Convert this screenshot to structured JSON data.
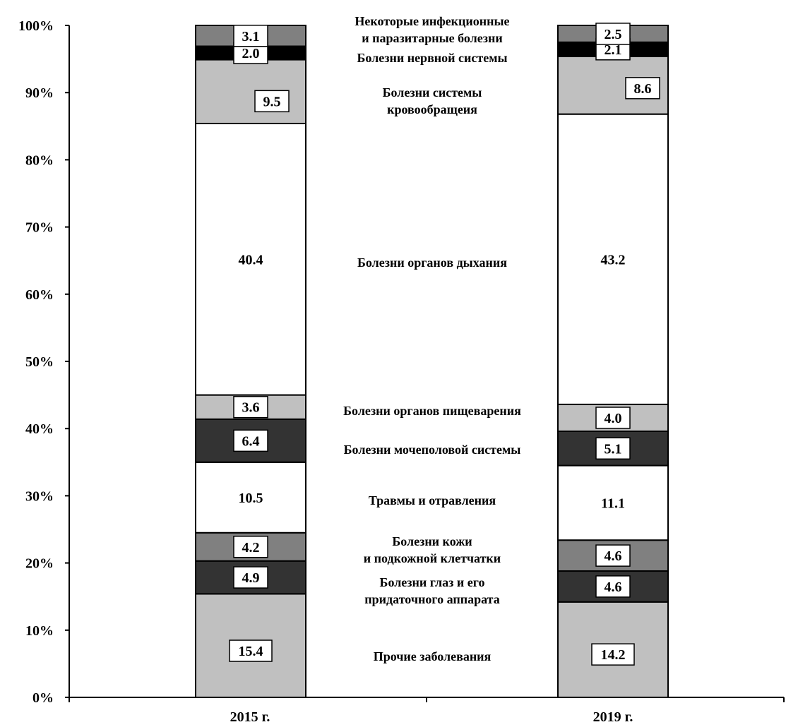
{
  "chart_data": {
    "type": "bar",
    "stacked": true,
    "normalized_percent": true,
    "categories": [
      "2015 г.",
      "2019 г."
    ],
    "y_ticks": [
      "0%",
      "10%",
      "20%",
      "30%",
      "40%",
      "50%",
      "60%",
      "70%",
      "80%",
      "90%",
      "100%"
    ],
    "ylim": [
      0,
      100
    ],
    "grid": false,
    "series": [
      {
        "name": "Прочие заболевания",
        "name_lines": [
          "Прочие заболевания"
        ],
        "values": [
          15.4,
          14.2
        ],
        "labels": [
          "15.4",
          "14.2"
        ],
        "color": "#c0c0c0"
      },
      {
        "name": "Болезни глаз и его придаточного аппарата",
        "name_lines": [
          "Болезни глаз и его",
          "придаточного аппарата"
        ],
        "values": [
          4.9,
          4.6
        ],
        "labels": [
          "4.9",
          "4.6"
        ],
        "color": "#333333"
      },
      {
        "name": "Болезни кожи и подкожной клетчатки",
        "name_lines": [
          "Болезни кожи",
          "и подкожной клетчатки"
        ],
        "values": [
          4.2,
          4.6
        ],
        "labels": [
          "4.2",
          "4.6"
        ],
        "color": "#808080"
      },
      {
        "name": "Травмы и отравления",
        "name_lines": [
          "Травмы и отравления"
        ],
        "values": [
          10.5,
          11.1
        ],
        "labels": [
          "10.5",
          "11.1"
        ],
        "color": "#ffffff"
      },
      {
        "name": "Болезни мочеполовой системы",
        "name_lines": [
          "Болезни мочеполовой системы"
        ],
        "values": [
          6.4,
          5.1
        ],
        "labels": [
          "6.4",
          "5.1"
        ],
        "color": "#333333"
      },
      {
        "name": "Болезни органов пищеварения",
        "name_lines": [
          "Болезни органов пищеварения"
        ],
        "values": [
          3.6,
          4.0
        ],
        "labels": [
          "3.6",
          "4.0"
        ],
        "color": "#c0c0c0"
      },
      {
        "name": "Болезни органов дыхания",
        "name_lines": [
          "Болезни органов дыхания"
        ],
        "values": [
          40.4,
          43.2
        ],
        "labels": [
          "40.4",
          "43.2"
        ],
        "color": "#ffffff"
      },
      {
        "name": "Болезни системы кровообращеия",
        "name_lines": [
          "Болезни системы",
          "кровообращеия"
        ],
        "values": [
          9.5,
          8.6
        ],
        "labels": [
          "9.5",
          "8.6"
        ],
        "color": "#c0c0c0"
      },
      {
        "name": "Болезни нервной системы",
        "name_lines": [
          "Болезни нервной системы"
        ],
        "values": [
          2.0,
          2.1
        ],
        "labels": [
          "2.0",
          "2.1"
        ],
        "color": "#000000"
      },
      {
        "name": "Некоторые инфекционные и паразитарные болезни",
        "name_lines": [
          "Некоторые инфекционные",
          "и паразитарные болезни"
        ],
        "values": [
          3.1,
          2.5
        ],
        "labels": [
          "3.1",
          "2.5"
        ],
        "color": "#808080"
      }
    ]
  }
}
